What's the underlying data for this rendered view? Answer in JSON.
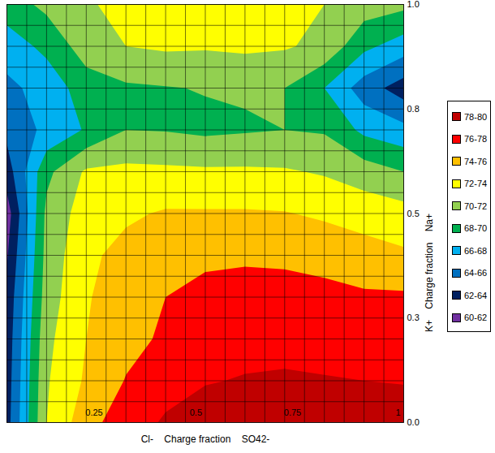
{
  "chart_data": {
    "type": "contour",
    "x_label": "Cl-    Charge fraction    SO42-",
    "y_label": "K+    Charge fraction    Na+",
    "xlim": [
      0,
      1
    ],
    "ylim": [
      0,
      1
    ],
    "xticks": [
      0.25,
      0.5,
      0.75,
      1
    ],
    "yticks": [
      0,
      0.25,
      0.5,
      0.75,
      1
    ],
    "grid": true,
    "legend": "right",
    "x": [
      0,
      0.1,
      0.2,
      0.3,
      0.4,
      0.5,
      0.6,
      0.7,
      0.8,
      0.9,
      1
    ],
    "y": [
      0,
      0.1,
      0.2,
      0.3,
      0.4,
      0.5,
      0.6,
      0.7,
      0.8,
      0.9,
      1
    ],
    "z": [
      [
        63.2,
        72,
        75.2,
        77.2,
        78.2,
        78.8,
        79,
        79.2,
        79.2,
        79.1,
        79
      ],
      [
        63,
        71.8,
        74.3,
        76.1,
        77.4,
        77.9,
        78.1,
        78.2,
        78.1,
        78,
        77.9
      ],
      [
        62.8,
        71.5,
        74,
        75.4,
        76.3,
        77.3,
        77.5,
        77.5,
        77.4,
        77.2,
        77
      ],
      [
        62.5,
        71,
        73.8,
        75.2,
        76,
        76.6,
        76.8,
        76.8,
        76.6,
        76.3,
        76.3
      ],
      [
        61.8,
        70.7,
        73.6,
        74.6,
        75.2,
        75.6,
        75.7,
        75.6,
        75.3,
        74.8,
        74.3
      ],
      [
        61,
        70.5,
        73,
        73.7,
        74.2,
        74.2,
        74.2,
        74.1,
        73.7,
        73.2,
        72.8
      ],
      [
        63,
        69.5,
        72.3,
        72.5,
        72.4,
        72.3,
        72.3,
        72.2,
        71.8,
        71,
        70
      ],
      [
        64.5,
        66.5,
        68.2,
        70,
        69.9,
        69.6,
        69.8,
        70,
        69.8,
        67.5,
        66.6
      ],
      [
        65.5,
        66.8,
        69,
        69.7,
        69.9,
        70.1,
        70.2,
        70,
        68,
        65,
        63
      ],
      [
        67,
        68.5,
        71,
        72,
        72.3,
        72.2,
        72.4,
        72.2,
        71.5,
        68.5,
        67
      ],
      [
        69,
        70.5,
        71.8,
        72.5,
        73.2,
        73.6,
        73.6,
        73.4,
        72,
        71,
        70.5
      ]
    ],
    "levels": [
      {
        "label": "78-80",
        "min": 78,
        "max": 80,
        "color": "#c00000"
      },
      {
        "label": "76-78",
        "min": 76,
        "max": 78,
        "color": "#ff0000"
      },
      {
        "label": "74-76",
        "min": 74,
        "max": 76,
        "color": "#ffc000"
      },
      {
        "label": "72-74",
        "min": 72,
        "max": 74,
        "color": "#ffff00"
      },
      {
        "label": "70-72",
        "min": 70,
        "max": 72,
        "color": "#92d050"
      },
      {
        "label": "68-70",
        "min": 68,
        "max": 70,
        "color": "#00b050"
      },
      {
        "label": "66-68",
        "min": 66,
        "max": 68,
        "color": "#00b0f0"
      },
      {
        "label": "64-66",
        "min": 64,
        "max": 66,
        "color": "#0070c0"
      },
      {
        "label": "62-64",
        "min": 62,
        "max": 64,
        "color": "#002060"
      },
      {
        "label": "60-62",
        "min": 60,
        "max": 62,
        "color": "#7030a0"
      }
    ]
  }
}
